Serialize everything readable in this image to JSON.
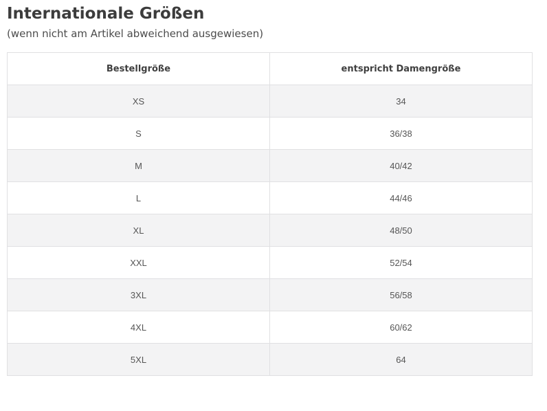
{
  "page": {
    "title": "Internationale Größen",
    "subtitle": "(wenn nicht am Artikel abweichend ausgewiesen)"
  },
  "table": {
    "columns": [
      "Bestellgröße",
      "entspricht Damengröße"
    ],
    "rows": [
      {
        "size": "XS",
        "equivalent": "34"
      },
      {
        "size": "S",
        "equivalent": "36/38"
      },
      {
        "size": "M",
        "equivalent": "40/42"
      },
      {
        "size": "L",
        "equivalent": "44/46"
      },
      {
        "size": "XL",
        "equivalent": "48/50"
      },
      {
        "size": "XXL",
        "equivalent": "52/54"
      },
      {
        "size": "3XL",
        "equivalent": "56/58"
      },
      {
        "size": "4XL",
        "equivalent": "60/62"
      },
      {
        "size": "5XL",
        "equivalent": "64"
      }
    ]
  },
  "colors": {
    "title_text": "#3c3c3c",
    "subtitle_text": "#4b4b4b",
    "cell_text": "#555555",
    "header_text": "#3f3f3f",
    "table_border": "#e0e0e2",
    "row_alt_bg": "#f3f3f4",
    "row_bg": "#ffffff"
  }
}
